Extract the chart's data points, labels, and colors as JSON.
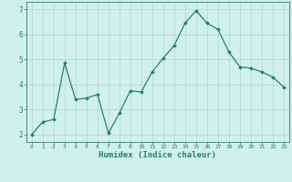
{
  "x": [
    0,
    1,
    2,
    3,
    4,
    5,
    6,
    7,
    8,
    9,
    10,
    11,
    12,
    13,
    14,
    15,
    16,
    17,
    18,
    19,
    20,
    21,
    22,
    23
  ],
  "y": [
    2.0,
    2.5,
    2.6,
    4.85,
    3.4,
    3.45,
    3.6,
    2.05,
    2.85,
    3.75,
    3.7,
    4.5,
    5.05,
    5.55,
    6.45,
    6.95,
    6.45,
    6.2,
    5.3,
    4.7,
    4.65,
    4.5,
    4.3,
    3.9
  ],
  "xlabel": "Humidex (Indice chaleur)",
  "line_color": "#2e7d6e",
  "bg_color": "#cff0eb",
  "grid_color": "#aed8d0",
  "xlim": [
    -0.5,
    23.5
  ],
  "ylim": [
    1.7,
    7.3
  ],
  "yticks": [
    2,
    3,
    4,
    5,
    6,
    7
  ],
  "xticks": [
    0,
    1,
    2,
    3,
    4,
    5,
    6,
    7,
    8,
    9,
    10,
    11,
    12,
    13,
    14,
    15,
    16,
    17,
    18,
    19,
    20,
    21,
    22,
    23
  ],
  "xlabel_fontsize": 6.5,
  "tick_fontsize_x": 4.5,
  "tick_fontsize_y": 5.5
}
